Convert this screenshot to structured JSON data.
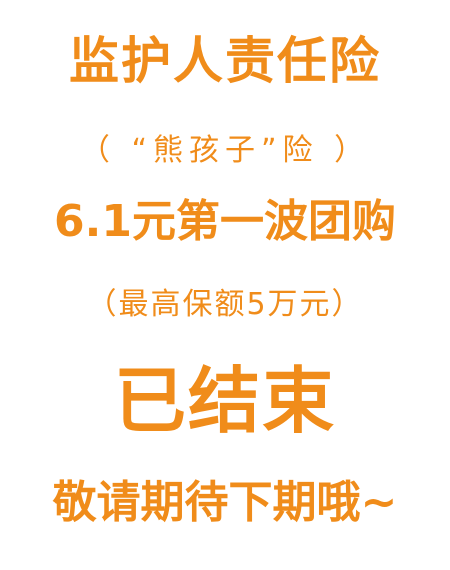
{
  "notice": {
    "title": "监护人责任险",
    "subtitle": "（ “熊孩子”险 ）",
    "promo": "6.1元第一波团购",
    "detail": "（最高保额5万元）",
    "status": "已结束",
    "footer": "敬请期待下期哦~"
  },
  "colors": {
    "text": "#f08c1a",
    "background": "#ffffff"
  }
}
